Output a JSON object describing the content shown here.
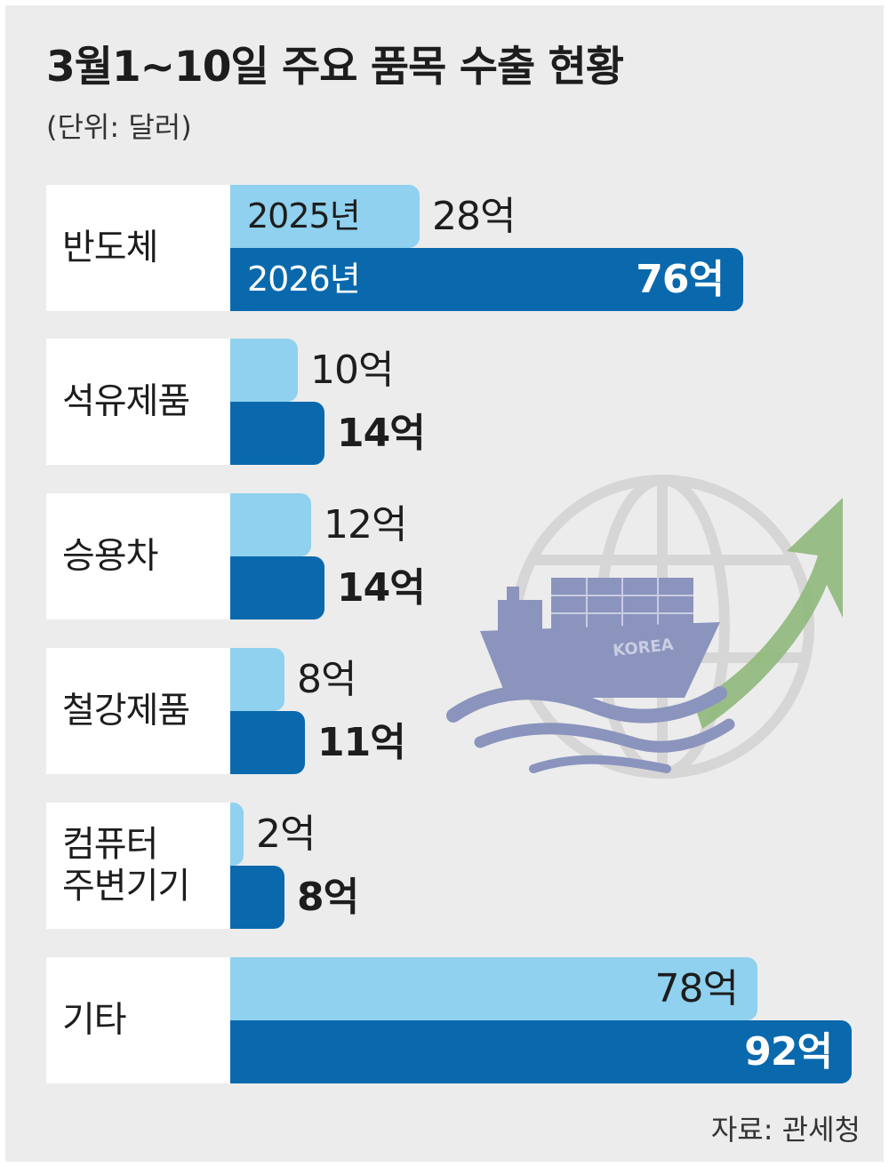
{
  "chart_data": {
    "type": "bar",
    "orientation": "horizontal",
    "title": "3월1~10일 주요 품목 수출 현황",
    "unit_note": "(단위: 달러)",
    "source": "자료: 관세청",
    "categories": [
      "반도체",
      "석유제품",
      "승용차",
      "철강제품",
      "컴퓨터\n주변기기",
      "기타"
    ],
    "series": [
      {
        "name": "2025년",
        "values": [
          28,
          10,
          12,
          8,
          2,
          78
        ],
        "labels": [
          "28억",
          "10억",
          "12억",
          "8억",
          "2억",
          "78억"
        ],
        "color": "#8fd1ee"
      },
      {
        "name": "2026년",
        "values": [
          76,
          14,
          14,
          11,
          8,
          92
        ],
        "labels": [
          "76억",
          "14억",
          "14억",
          "11억",
          "8억",
          "92억"
        ],
        "color": "#0a69ad"
      }
    ],
    "xlim": [
      0,
      92
    ],
    "grid": false
  },
  "illustration": {
    "ship_text": "KOREA",
    "icons": [
      "globe-icon",
      "container-ship-icon",
      "wave-icon",
      "rising-arrow-icon"
    ],
    "colors": {
      "globe": "#d8d8d8",
      "ship": "#8a94bd",
      "arrow": "#8fb87a"
    }
  }
}
